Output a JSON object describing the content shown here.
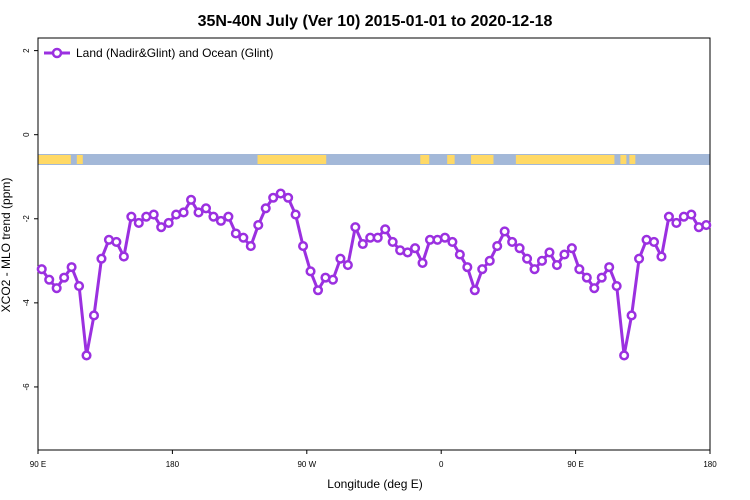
{
  "chart_data": {
    "type": "line",
    "title": "35N-40N July (Ver 10)   2015-01-01 to 2020-12-18",
    "xlabel": "Longitude (deg E)",
    "ylabel": "XCO2 - MLO trend (ppm)",
    "xlim": [
      90,
      540
    ],
    "ylim": [
      -7.5,
      2.3
    ],
    "x_ticks": [
      {
        "value": 90,
        "label": "90 E"
      },
      {
        "value": 180,
        "label": "180"
      },
      {
        "value": 270,
        "label": "90 W"
      },
      {
        "value": 360,
        "label": "0"
      },
      {
        "value": 450,
        "label": "90 E"
      },
      {
        "value": 540,
        "label": "180"
      }
    ],
    "y_ticks": [
      {
        "value": 2,
        "label": "2"
      },
      {
        "value": 0,
        "label": "0"
      },
      {
        "value": -2,
        "label": "-2"
      },
      {
        "value": -4,
        "label": "-4"
      },
      {
        "value": -6,
        "label": "-6"
      }
    ],
    "legend_position": "top-left",
    "grid": false,
    "color": "#9b30e0",
    "land_color": "#ffd966",
    "ocean_color": "#a3b8d8",
    "series": [
      {
        "name": "Land (Nadir&Glint) and Ocean (Glint)",
        "x": [
          92.5,
          97.5,
          102.5,
          107.5,
          112.5,
          117.5,
          122.5,
          127.5,
          132.5,
          137.5,
          142.5,
          147.5,
          152.5,
          157.5,
          162.5,
          167.5,
          172.5,
          177.5,
          182.5,
          187.5,
          192.5,
          197.5,
          202.5,
          207.5,
          212.5,
          217.5,
          222.5,
          227.5,
          232.5,
          237.5,
          242.5,
          247.5,
          252.5,
          257.5,
          262.5,
          267.5,
          272.5,
          277.5,
          282.5,
          287.5,
          292.5,
          297.5,
          302.5,
          307.5,
          312.5,
          317.5,
          322.5,
          327.5,
          332.5,
          337.5,
          342.5,
          347.5,
          352.5,
          357.5,
          362.5,
          367.5,
          372.5,
          377.5,
          382.5,
          387.5,
          392.5,
          397.5,
          402.5,
          407.5,
          412.5,
          417.5,
          422.5,
          427.5,
          432.5,
          437.5,
          442.5,
          447.5,
          452.5,
          457.5,
          462.5,
          467.5,
          472.5,
          477.5,
          482.5,
          487.5,
          492.5,
          497.5,
          502.5,
          507.5,
          512.5,
          517.5,
          522.5,
          527.5,
          532.5,
          537.5
        ],
        "y": [
          -3.2,
          -3.45,
          -3.65,
          -3.4,
          -3.15,
          -3.6,
          -5.25,
          -4.3,
          -2.95,
          -2.5,
          -2.55,
          -2.9,
          -1.95,
          -2.1,
          -1.95,
          -1.9,
          -2.2,
          -2.1,
          -1.9,
          -1.85,
          -1.55,
          -1.85,
          -1.75,
          -1.95,
          -2.05,
          -1.95,
          -2.35,
          -2.45,
          -2.65,
          -2.15,
          -1.75,
          -1.5,
          -1.4,
          -1.5,
          -1.9,
          -2.65,
          -3.25,
          -3.7,
          -3.4,
          -3.45,
          -2.95,
          -3.1,
          -2.2,
          -2.6,
          -2.45,
          -2.45,
          -2.25,
          -2.55,
          -2.75,
          -2.8,
          -2.7,
          -3.05,
          -2.5,
          -2.5,
          -2.45,
          -2.55,
          -2.85,
          -3.15,
          -3.7,
          -3.2,
          -3.0,
          -2.65,
          -2.3,
          -2.55,
          -2.7,
          -2.95,
          -3.2,
          -3.0,
          -2.8,
          -3.1,
          -2.85,
          -2.7,
          -3.2,
          -3.4,
          -3.65,
          -3.4,
          -3.15,
          -3.6,
          -5.25,
          -4.3,
          -2.95,
          -2.5,
          -2.55,
          -2.9,
          -1.95,
          -2.1,
          -1.95,
          -1.9,
          -2.2,
          -2.15
        ]
      }
    ]
  }
}
